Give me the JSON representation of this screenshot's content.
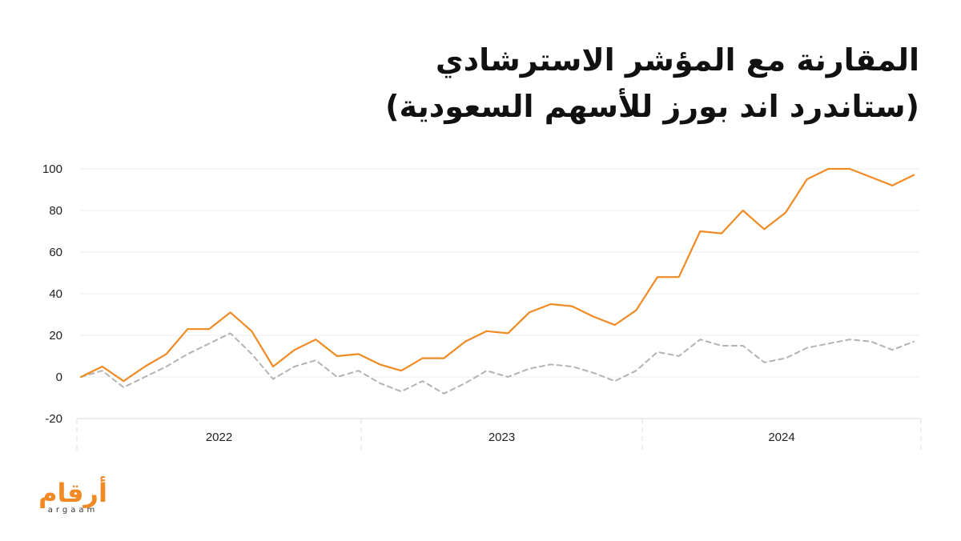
{
  "title": {
    "line1": "المقارنة مع المؤشر الاسترشادي",
    "line2": "(ستاندرد اند بورز للأسهم السعودية)"
  },
  "logo": {
    "arabic": "أرقام",
    "latin": "argaam"
  },
  "colors": {
    "primary": "#f08a24",
    "benchmark": "#b3b3b3",
    "grid": "#ececec",
    "axis": "#dcdcdc"
  },
  "chart_data": {
    "type": "line",
    "title": "المقارنة مع المؤشر الاسترشادي (ستاندرد اند بورز للأسهم السعودية)",
    "xlabel": "",
    "ylabel": "",
    "ylim": [
      -20,
      100
    ],
    "yticks": [
      100,
      80,
      60,
      40,
      20,
      0,
      -20
    ],
    "year_labels": [
      "2022",
      "2023",
      "2024"
    ],
    "grid": true,
    "x_count": 40,
    "series": [
      {
        "style": "solid",
        "color": "#f08a24",
        "values": [
          0,
          5,
          -2,
          5,
          11,
          23,
          23,
          31,
          22,
          5,
          13,
          18,
          10,
          11,
          6,
          3,
          9,
          9,
          17,
          22,
          21,
          31,
          35,
          34,
          29,
          25,
          32,
          48,
          48,
          70,
          69,
          80,
          71,
          79,
          95,
          100,
          100,
          96,
          92,
          97
        ]
      },
      {
        "style": "dashed",
        "color": "#b3b3b3",
        "values": [
          0,
          3,
          -5,
          0,
          5,
          11,
          16,
          21,
          11,
          -1,
          5,
          8,
          0,
          3,
          -3,
          -7,
          -2,
          -8,
          -3,
          3,
          0,
          4,
          6,
          5,
          2,
          -2,
          3,
          12,
          10,
          18,
          15,
          15,
          7,
          9,
          14,
          16,
          18,
          17,
          13,
          17
        ]
      }
    ]
  }
}
